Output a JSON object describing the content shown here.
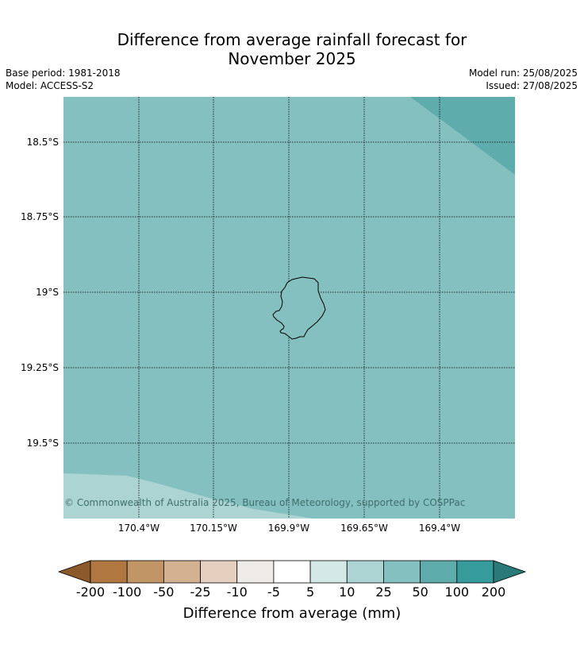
{
  "header": {
    "title_line1": "Difference from average rainfall forecast for",
    "title_line2": "November 2025",
    "base_period": "Base period: 1981-2018",
    "model": "Model: ACCESS-S2",
    "model_run": "Model run: 25/08/2025",
    "issued": "Issued: 27/08/2025"
  },
  "map": {
    "lat_labels": [
      "18.5°S",
      "18.75°S",
      "19°S",
      "19.25°S",
      "19.5°S"
    ],
    "lon_labels": [
      "170.4°W",
      "170.15°W",
      "169.9°W",
      "169.65°W",
      "169.4°W"
    ],
    "copyright": "© Commonwealth of Australia 2025, Bureau of Meteorology, supported by COSPPac",
    "colors": {
      "dominant_fill": "#84c0bf",
      "northeast_fill": "#5eacac",
      "southwest_fill": "#acd4d3"
    }
  },
  "colorbar": {
    "title": "Difference from average (mm)",
    "labels": [
      "-200",
      "-100",
      "-50",
      "-25",
      "-10",
      "-5",
      "5",
      "10",
      "25",
      "50",
      "100",
      "200"
    ],
    "colors": [
      "#8c5a2a",
      "#b07840",
      "#c19566",
      "#d4b191",
      "#e6cfbf",
      "#efebe8",
      "#ffffff",
      "#d4e8e7",
      "#acd4d3",
      "#84c0bf",
      "#5eacac",
      "#369c9b",
      "#2a7a79"
    ]
  }
}
